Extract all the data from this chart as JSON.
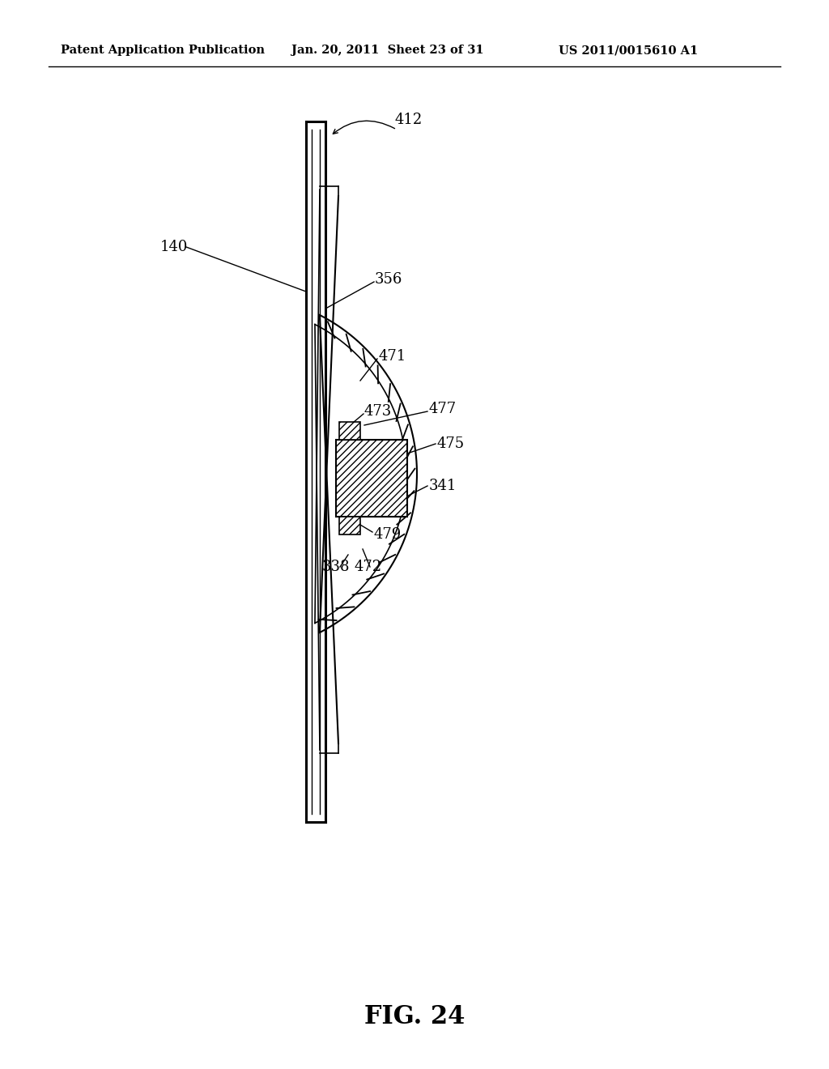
{
  "bg_color": "#ffffff",
  "line_color": "#000000",
  "header_left": "Patent Application Publication",
  "header_mid": "Jan. 20, 2011  Sheet 23 of 31",
  "header_right": "US 2011/0015610 A1",
  "fig_label": "FIG. 24",
  "header_fontsize": 11,
  "label_fontsize": 13,
  "fig_label_fontsize": 22
}
